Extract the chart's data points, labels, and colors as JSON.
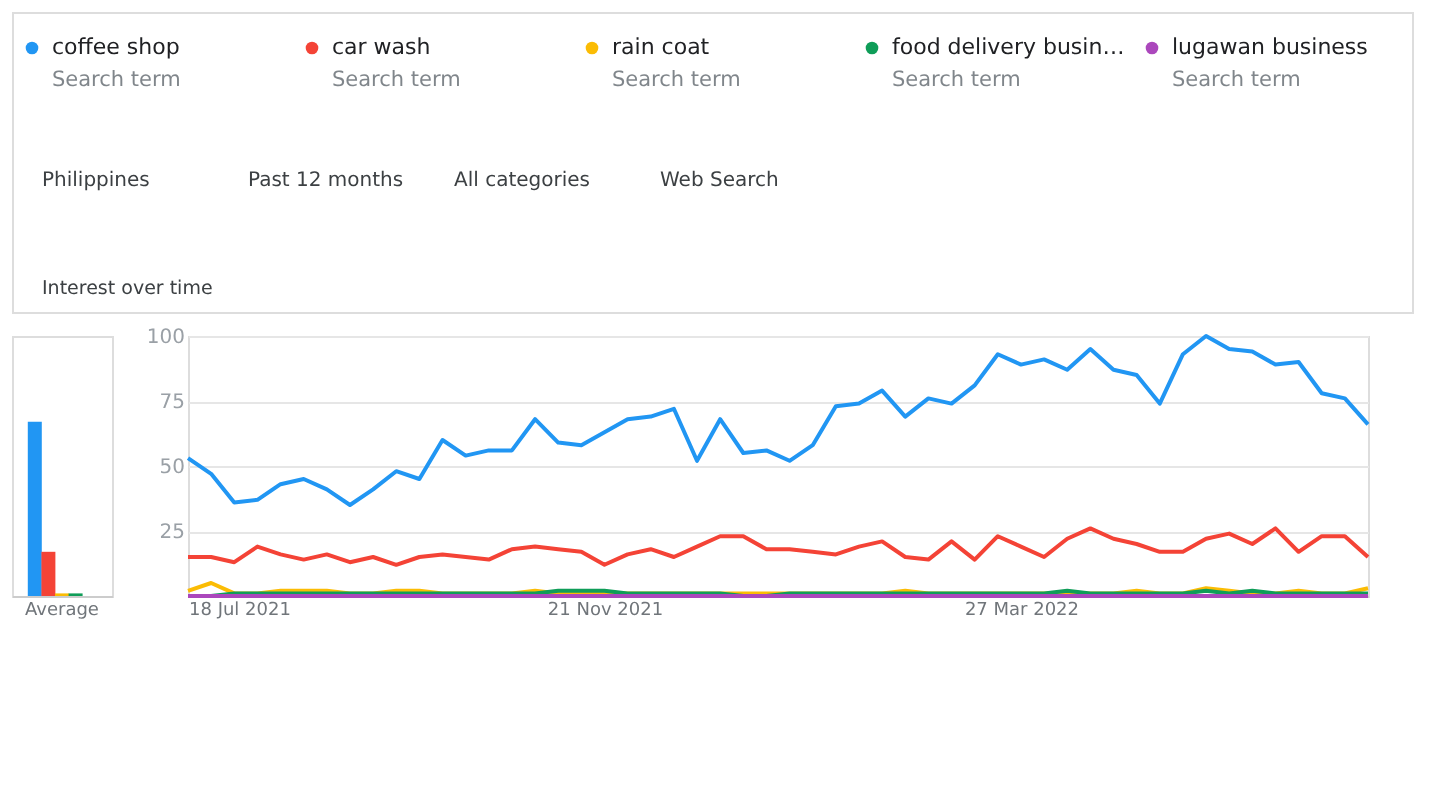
{
  "chart_data": [
    {
      "type": "bar",
      "categories": [
        "Average"
      ],
      "ylim": [
        0,
        100
      ],
      "tick_labels": "x",
      "grid": false,
      "series": [
        {
          "color": "#2196f3",
          "values": [
            67
          ]
        },
        {
          "color": "#f44336",
          "values": [
            17
          ]
        },
        {
          "color": "#fbbc04",
          "values": [
            1
          ]
        },
        {
          "color": "#0f9d58",
          "values": [
            1
          ]
        },
        {
          "color": "#ab47bc",
          "values": [
            0
          ]
        }
      ]
    },
    {
      "type": "line",
      "title": "Interest over time",
      "legend": "top",
      "grid": "y",
      "marker": "none",
      "line_style": "solid",
      "annotations": [
        "Search term",
        "Search term",
        "Search term",
        "Search term",
        "Search term",
        "Philippines",
        "Past 12 months",
        "All categories",
        "Web Search"
      ],
      "x": [
        "2021-07-18",
        "2021-07-25",
        "2021-08-01",
        "2021-08-08",
        "2021-08-15",
        "2021-08-22",
        "2021-08-29",
        "2021-09-05",
        "2021-09-12",
        "2021-09-19",
        "2021-09-26",
        "2021-10-03",
        "2021-10-10",
        "2021-10-17",
        "2021-10-24",
        "2021-10-31",
        "2021-11-07",
        "2021-11-14",
        "2021-11-21",
        "2021-11-28",
        "2021-12-05",
        "2021-12-12",
        "2021-12-19",
        "2021-12-26",
        "2022-01-02",
        "2022-01-09",
        "2022-01-16",
        "2022-01-23",
        "2022-01-30",
        "2022-02-06",
        "2022-02-13",
        "2022-02-20",
        "2022-02-27",
        "2022-03-06",
        "2022-03-13",
        "2022-03-20",
        "2022-03-27",
        "2022-04-03",
        "2022-04-10",
        "2022-04-17",
        "2022-04-24",
        "2022-05-01",
        "2022-05-08",
        "2022-05-15",
        "2022-05-22",
        "2022-05-29",
        "2022-06-05",
        "2022-06-12",
        "2022-06-19",
        "2022-06-26",
        "2022-07-03",
        "2022-07-10"
      ],
      "xlim": [
        "2021-07-18",
        "2022-07-10"
      ],
      "xticks": [
        {
          "value": "2021-07-18",
          "label": "18 Jul 2021"
        },
        {
          "value": "2021-11-21",
          "label": "21 Nov 2021"
        },
        {
          "value": "2022-03-27",
          "label": "27 Mar 2022"
        }
      ],
      "ylim": [
        0,
        100
      ],
      "yticks": [
        {
          "value": 0,
          "label": null
        },
        25,
        50,
        75,
        100
      ],
      "series": [
        {
          "name": "coffee  shop",
          "color": "#2196f3",
          "values": [
            53,
            47,
            36,
            37,
            43,
            45,
            41,
            35,
            41,
            48,
            45,
            60,
            54,
            56,
            56,
            68,
            59,
            58,
            63,
            68,
            69,
            72,
            52,
            68,
            55,
            56,
            52,
            58,
            73,
            74,
            79,
            69,
            76,
            74,
            81,
            93,
            89,
            91,
            87,
            95,
            87,
            85,
            74,
            93,
            100,
            95,
            94,
            89,
            90,
            78,
            76,
            66
          ]
        },
        {
          "name": "car wash",
          "color": "#f44336",
          "values": [
            15,
            15,
            13,
            19,
            16,
            14,
            16,
            13,
            15,
            12,
            15,
            16,
            15,
            14,
            18,
            19,
            18,
            17,
            12,
            16,
            18,
            15,
            19,
            23,
            23,
            18,
            18,
            17,
            16,
            19,
            21,
            15,
            14,
            21,
            14,
            23,
            19,
            15,
            22,
            26,
            22,
            20,
            17,
            17,
            22,
            24,
            20,
            26,
            17,
            23,
            23,
            15
          ]
        },
        {
          "name": "rain coat",
          "color": "#fbbc04",
          "values": [
            2,
            5,
            1,
            1,
            2,
            2,
            2,
            1,
            1,
            2,
            2,
            1,
            1,
            1,
            1,
            2,
            1,
            1,
            1,
            1,
            1,
            1,
            1,
            1,
            1,
            1,
            1,
            1,
            1,
            1,
            1,
            2,
            1,
            1,
            1,
            1,
            1,
            1,
            1,
            1,
            1,
            2,
            1,
            1,
            3,
            2,
            1,
            1,
            2,
            1,
            1,
            3
          ]
        },
        {
          "name": "food delivery busin…",
          "color": "#0f9d58",
          "values": [
            0,
            0,
            1,
            1,
            1,
            1,
            1,
            1,
            1,
            1,
            1,
            1,
            1,
            1,
            1,
            1,
            2,
            2,
            2,
            1,
            1,
            1,
            1,
            1,
            0,
            0,
            1,
            1,
            1,
            1,
            1,
            1,
            1,
            1,
            1,
            1,
            1,
            1,
            2,
            1,
            1,
            1,
            1,
            1,
            2,
            1,
            2,
            1,
            1,
            1,
            1,
            1
          ]
        },
        {
          "name": "lugawan business",
          "color": "#ab47bc",
          "values": [
            0,
            0,
            0,
            0,
            0,
            0,
            0,
            0,
            0,
            0,
            0,
            0,
            0,
            0,
            0,
            0,
            0,
            0,
            0,
            0,
            0,
            0,
            0,
            0,
            0,
            0,
            0,
            0,
            0,
            0,
            0,
            0,
            0,
            0,
            0,
            0,
            0,
            0,
            0,
            0,
            0,
            0,
            0,
            0,
            0,
            0,
            0,
            0,
            0,
            0,
            0,
            0
          ]
        }
      ]
    }
  ]
}
